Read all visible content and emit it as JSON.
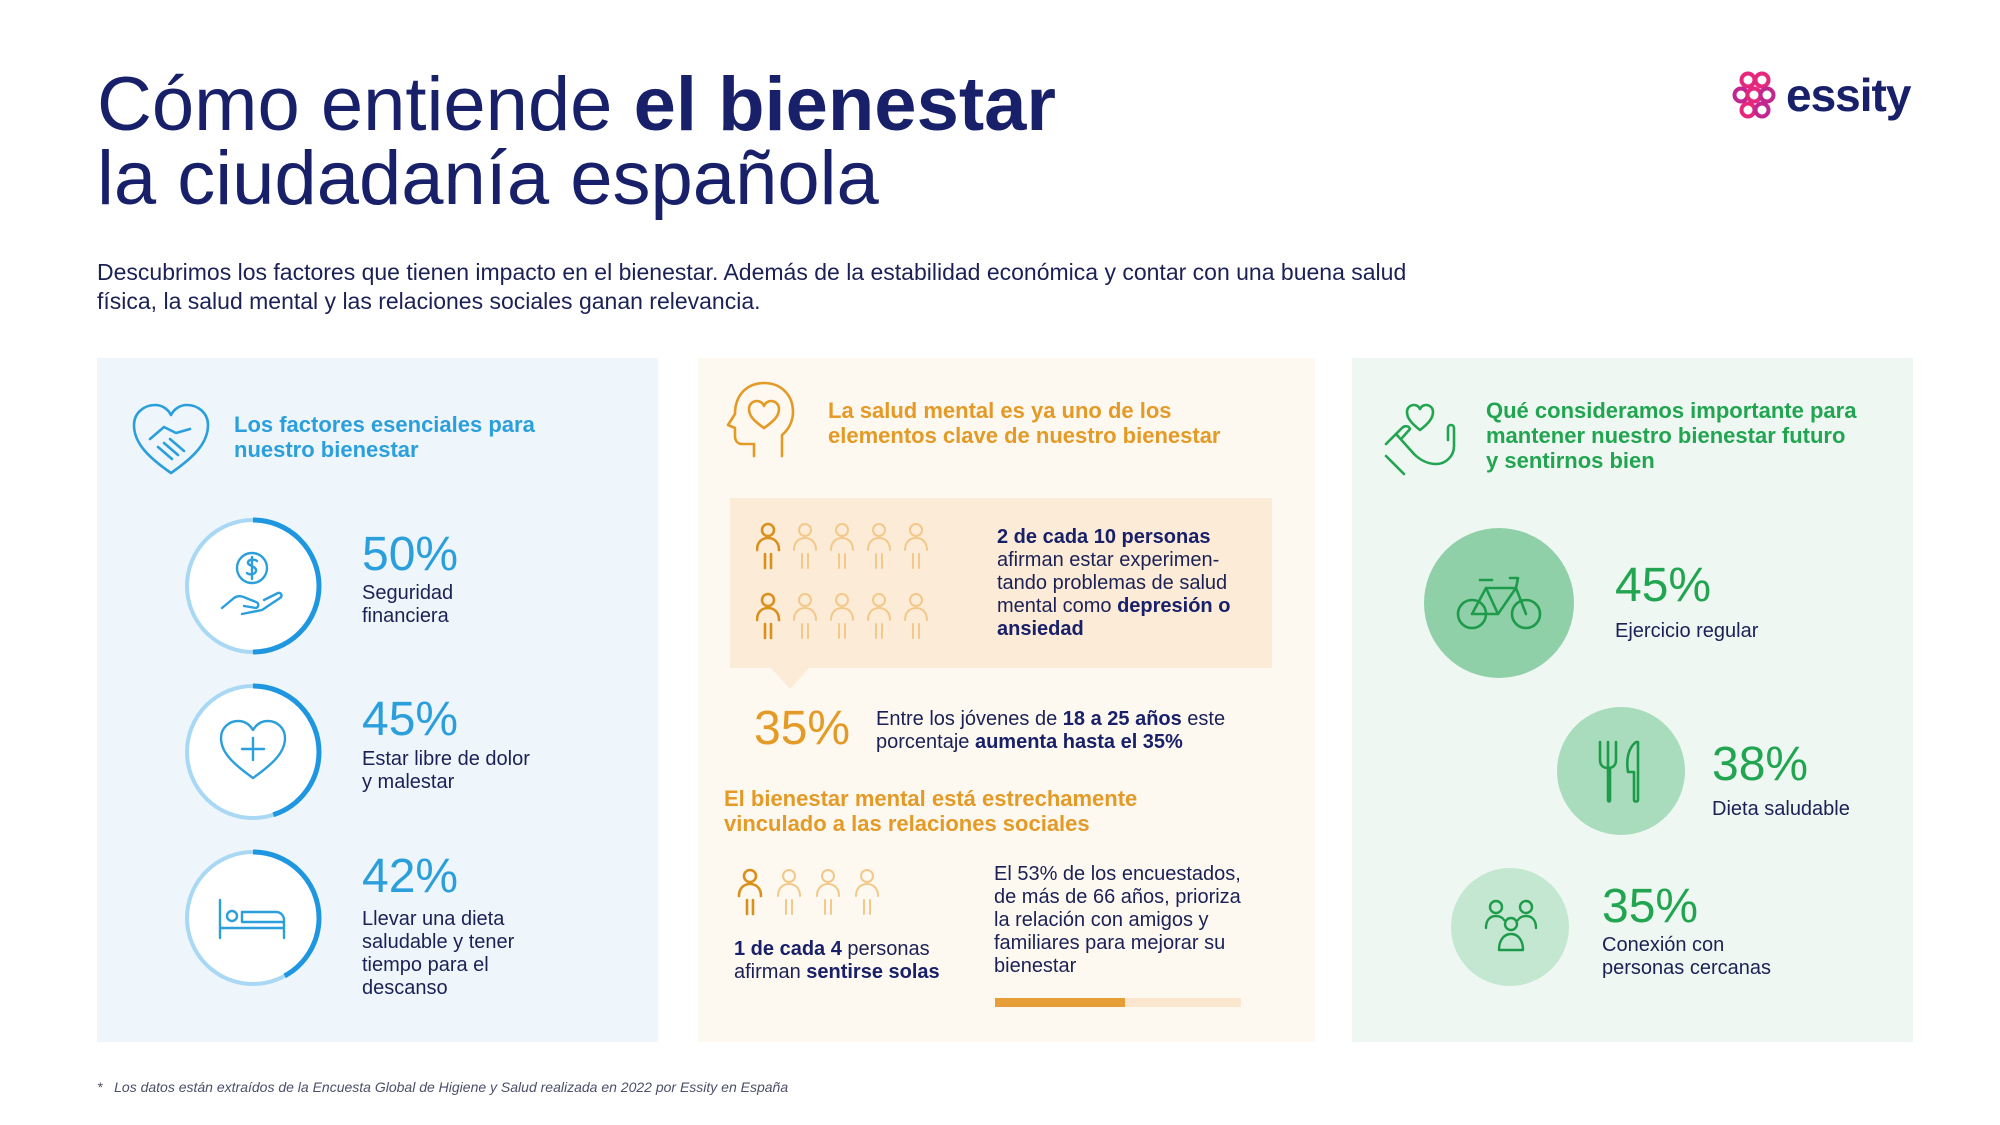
{
  "header": {
    "title_line1_normal": "Cómo entiende ",
    "title_line1_bold": "el bienestar",
    "title_line2": "la ciudadanía española",
    "intro": "Descubrimos los factores que tienen impacto en el bienestar. Además de la estabilidad económica y contar con una buena salud física, la salud mental y las relaciones sociales ganan relevancia.",
    "logo_text": "essity"
  },
  "panel1": {
    "heading_line1": "Los factores esenciales para",
    "heading_line2": "nuestro bienestar",
    "factors": [
      {
        "percent": "50%",
        "value": 50,
        "label_lines": [
          "Seguridad",
          "financiera"
        ],
        "icon": "money-hand-icon"
      },
      {
        "percent": "45%",
        "value": 45,
        "label_lines": [
          "Estar libre de dolor",
          "y malestar"
        ],
        "icon": "heart-plus-icon"
      },
      {
        "percent": "42%",
        "value": 42,
        "label_lines": [
          "Llevar una dieta",
          "saludable y tener",
          "tiempo para el",
          "descanso"
        ],
        "icon": "bed-icon"
      }
    ]
  },
  "panel2": {
    "heading_line1": "La salud mental es ya uno de los",
    "heading_line2": "elementos clave de nuestro bienestar",
    "box": {
      "bold_lead": "2 de cada 10 personas",
      "line2": "afirman estar experimen-",
      "line3": "tando problemas de salud",
      "line4_normal": "mental como ",
      "line4_bold": "depresión o",
      "line5_bold": "ansiedad",
      "highlighted_people": 2,
      "total_people": 10
    },
    "youth": {
      "percent": "35%",
      "line1_a": "Entre los jóvenes de ",
      "line1_b": "18 a 25 años",
      "line1_c": " este",
      "line2_a": "porcentaje ",
      "line2_b": "aumenta hasta el 35%"
    },
    "subheading_line1": "El bienestar mental está estrechamente",
    "subheading_line2": "vinculado a las relaciones sociales",
    "lonely": {
      "line1_bold": "1 de cada 4",
      "line1_normal": " personas",
      "line2_normal": "afirman ",
      "line2_bold": "sentirse solas",
      "highlighted_people": 1,
      "total_people": 4
    },
    "older": {
      "lines": [
        "El 53% de los encuestados,",
        "de más de 66 años, prioriza",
        "la relación con amigos y",
        "familiares para mejorar su",
        "bienestar"
      ],
      "progress": 0.53
    }
  },
  "panel3": {
    "heading_line1": "Qué consideramos importante para",
    "heading_line2": "mantener nuestro bienestar futuro",
    "heading_line3": "y sentirnos bien",
    "items": [
      {
        "percent": "45%",
        "label_lines": [
          "Ejercicio regular"
        ],
        "icon": "bicycle-icon",
        "color": "#8fd0a8"
      },
      {
        "percent": "38%",
        "label_lines": [
          "Dieta saludable"
        ],
        "icon": "fork-knife-icon",
        "color": "#a9dcbc"
      },
      {
        "percent": "35%",
        "label_lines": [
          "Conexión con",
          "personas cercanas"
        ],
        "icon": "people-group-icon",
        "color": "#c4e7d1"
      }
    ]
  },
  "footnote": {
    "marker": "*",
    "text": "Los datos están extraídos de la Encuesta Global de Higiene y Salud realizada en 2022 por Essity en España"
  },
  "colors": {
    "navy": "#18206a",
    "blue": "#2b9fdc",
    "orange": "#e49a26",
    "green": "#22a551"
  }
}
